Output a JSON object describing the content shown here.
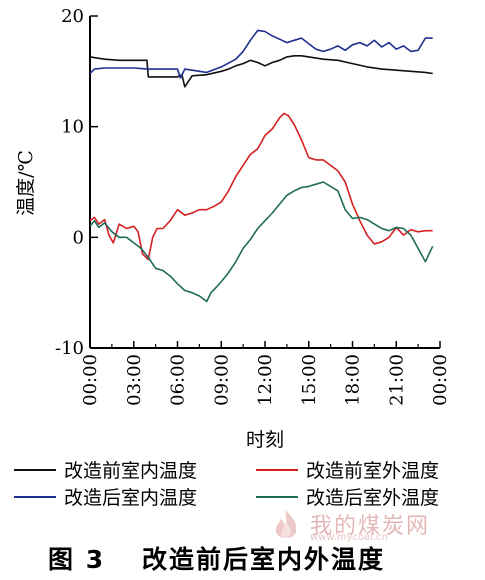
{
  "chart_data": {
    "type": "line",
    "title": "",
    "xlabel": "时刻",
    "ylabel": "温度/℃",
    "xlim": [
      0,
      24
    ],
    "ylim": [
      -10,
      20
    ],
    "x_ticks": [
      0,
      3,
      6,
      9,
      12,
      15,
      18,
      21,
      24
    ],
    "x_tick_labels": [
      "00:00",
      "03:00",
      "06:00",
      "09:00",
      "12:00",
      "15:00",
      "18:00",
      "21:00",
      "00:00"
    ],
    "y_ticks": [
      -10,
      0,
      10,
      20
    ],
    "y_tick_labels": [
      "-10",
      "0",
      "10",
      "20"
    ],
    "grid": false,
    "legend_position": "bottom",
    "series": [
      {
        "name": "改造前室内温度",
        "color": "#111111",
        "x": [
          0,
          0.5,
          1,
          2,
          3,
          3.9,
          4,
          5,
          6,
          6.3,
          6.5,
          7,
          8,
          9,
          9.5,
          10,
          10.5,
          11,
          11.5,
          12,
          12.5,
          13,
          13.5,
          14,
          14.5,
          15,
          16,
          17,
          18,
          19,
          20,
          21,
          22,
          23,
          23.5
        ],
        "y": [
          16.3,
          16.2,
          16.1,
          16.0,
          16.0,
          16.0,
          14.5,
          14.5,
          14.5,
          14.7,
          13.6,
          14.6,
          14.7,
          15.0,
          15.2,
          15.5,
          15.7,
          16.0,
          15.8,
          15.5,
          15.8,
          16.0,
          16.3,
          16.4,
          16.4,
          16.3,
          16.1,
          16.0,
          15.7,
          15.4,
          15.2,
          15.1,
          15.0,
          14.9,
          14.8
        ]
      },
      {
        "name": "改造后室内温度",
        "color": "#1f2f8f",
        "x": [
          0,
          0.3,
          1,
          2,
          3,
          4,
          5,
          6,
          6.2,
          6.5,
          7,
          8,
          9,
          10,
          10.5,
          11,
          11.5,
          12,
          12.5,
          13,
          13.5,
          14,
          14.5,
          15,
          15.5,
          16,
          16.5,
          17,
          17.5,
          18,
          18.5,
          19,
          19.5,
          20,
          20.5,
          21,
          21.5,
          22,
          22.5,
          23,
          23.5
        ],
        "y": [
          14.8,
          15.2,
          15.3,
          15.3,
          15.3,
          15.2,
          15.2,
          15.2,
          14.4,
          15.2,
          15.1,
          14.9,
          15.4,
          16.1,
          16.8,
          17.8,
          18.7,
          18.6,
          18.2,
          17.9,
          17.6,
          17.8,
          18.0,
          17.5,
          17.0,
          16.8,
          17.0,
          17.3,
          16.9,
          17.4,
          17.6,
          17.3,
          17.8,
          17.2,
          17.6,
          17.0,
          17.3,
          16.8,
          16.9,
          18.0,
          18.0
        ]
      },
      {
        "name": "改造前室外温度",
        "color": "#d42020",
        "x": [
          0,
          0.3,
          0.6,
          1,
          1.3,
          1.6,
          2,
          2.5,
          3,
          3.3,
          3.6,
          4,
          4.3,
          4.6,
          5,
          5.5,
          6,
          6.5,
          7,
          7.5,
          8,
          8.5,
          9,
          9.5,
          10,
          10.5,
          11,
          11.5,
          12,
          12.5,
          13,
          13.3,
          13.6,
          14,
          14.5,
          15,
          15.5,
          16,
          16.5,
          17,
          17.5,
          18,
          18.5,
          19,
          19.5,
          20,
          20.5,
          21,
          21.5,
          22,
          22.5,
          23,
          23.5
        ],
        "y": [
          1.5,
          1.8,
          1.2,
          1.6,
          0.2,
          -0.5,
          1.2,
          0.8,
          1.0,
          0.5,
          -1.5,
          -2.0,
          0.0,
          0.8,
          0.8,
          1.5,
          2.5,
          2.0,
          2.2,
          2.5,
          2.5,
          2.8,
          3.2,
          4.2,
          5.5,
          6.5,
          7.5,
          8.0,
          9.2,
          9.8,
          10.8,
          11.2,
          11.0,
          10.2,
          8.8,
          7.2,
          7.0,
          7.0,
          6.5,
          6.0,
          5.0,
          3.0,
          1.5,
          0.2,
          -0.6,
          -0.4,
          0.0,
          0.9,
          0.2,
          0.7,
          0.5,
          0.6,
          0.6
        ]
      },
      {
        "name": "改造后室外温度",
        "color": "#1f6b5a",
        "x": [
          0,
          0.3,
          0.6,
          1,
          1.5,
          2,
          2.5,
          3,
          3.5,
          4,
          4.5,
          5,
          5.5,
          6,
          6.5,
          7,
          7.5,
          8,
          8.3,
          8.6,
          9,
          9.5,
          10,
          10.5,
          11,
          11.5,
          12,
          12.5,
          13,
          13.5,
          14,
          14.5,
          15,
          15.5,
          16,
          16.5,
          17,
          17.5,
          18,
          18.5,
          19,
          19.5,
          20,
          20.5,
          21,
          21.5,
          22,
          22.5,
          23,
          23.5
        ],
        "y": [
          1.0,
          1.5,
          0.9,
          1.3,
          0.5,
          0.0,
          0.0,
          -0.5,
          -1.0,
          -1.8,
          -2.8,
          -3.0,
          -3.5,
          -4.2,
          -4.8,
          -5.0,
          -5.3,
          -5.8,
          -5.0,
          -4.6,
          -4.0,
          -3.2,
          -2.2,
          -1.0,
          -0.2,
          0.8,
          1.5,
          2.2,
          3.0,
          3.8,
          4.2,
          4.5,
          4.6,
          4.8,
          5.0,
          4.6,
          4.2,
          2.5,
          1.7,
          1.8,
          1.6,
          1.2,
          0.8,
          0.6,
          0.9,
          0.8,
          0.2,
          -1.0,
          -2.2,
          -0.8
        ]
      }
    ]
  },
  "caption": {
    "figure_number": "图 3",
    "title": "改造前后室内外温度"
  },
  "watermark": {
    "text": "我的煤炭网",
    "url": "www.mycoal.cn"
  }
}
